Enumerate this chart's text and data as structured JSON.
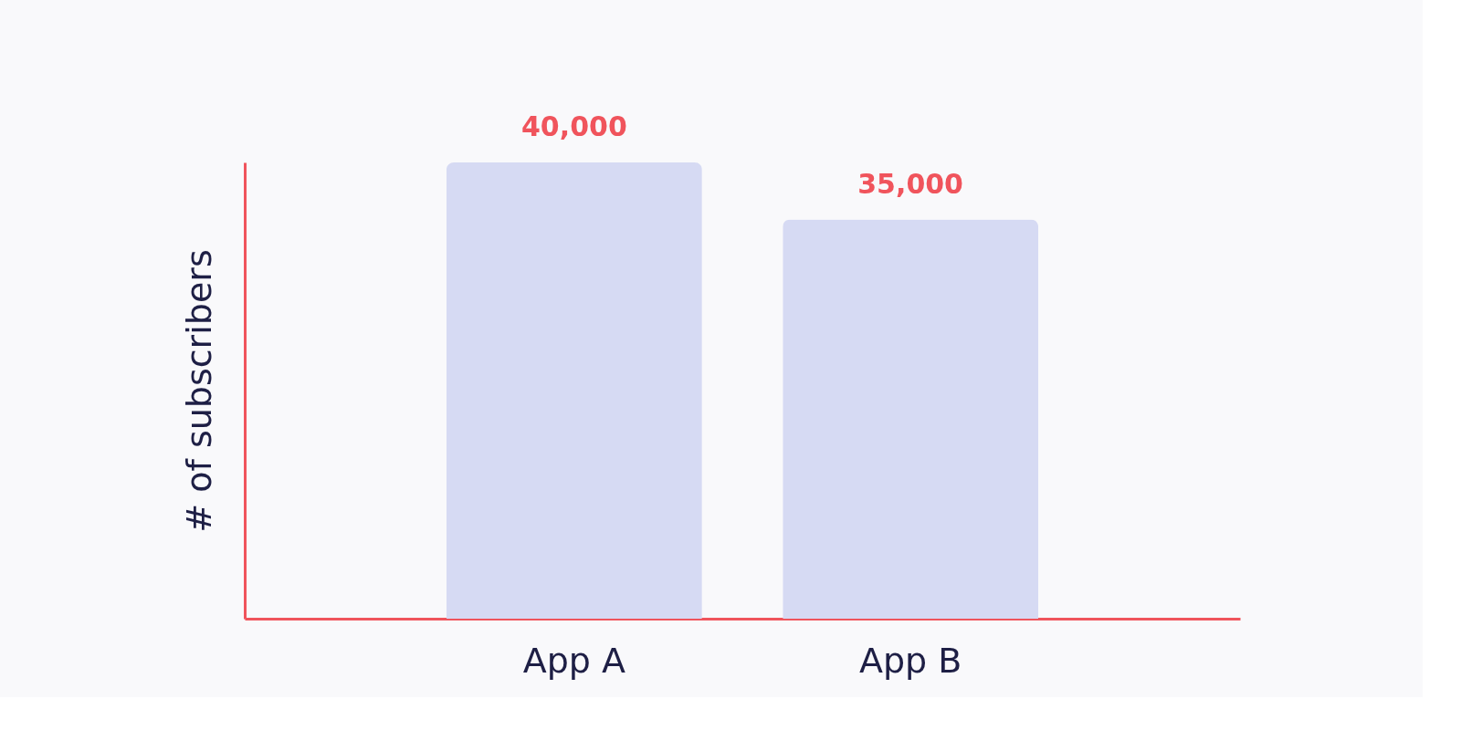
{
  "chart_data": {
    "type": "bar",
    "ylabel": "# of subscribers",
    "categories": [
      "App A",
      "App B"
    ],
    "values": [
      40000,
      35000
    ],
    "value_labels": [
      "40,000",
      "35,000"
    ],
    "color": "#d6daf3",
    "grid": false
  }
}
